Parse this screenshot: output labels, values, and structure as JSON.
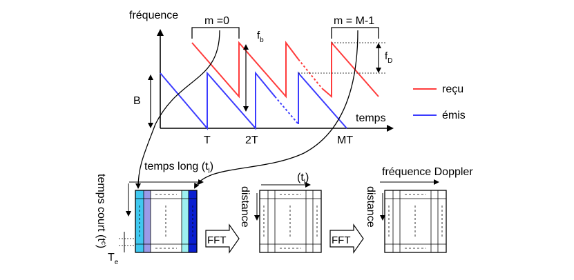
{
  "top": {
    "ylabel": "fréquence",
    "xlabel": "temps",
    "m0": "m =0",
    "mM": "m = M-1",
    "fb_main": "f",
    "fb_sub": "b",
    "fD_main": "f",
    "fD_sub": "D",
    "B": "B",
    "ticks": [
      "T",
      "2T",
      "MT"
    ],
    "legend": [
      {
        "label": "reçu",
        "color": "#ff3b3b"
      },
      {
        "label": "émis",
        "color": "#3b3bff"
      }
    ]
  },
  "bottom": {
    "temps_long": "temps long (t",
    "temps_long_sub": "l",
    "temps_long_close": ")",
    "temps_court": "temps court (t",
    "temps_court_sub": "c",
    "temps_court_close": ")",
    "Te_main": "T",
    "Te_sub": "e",
    "tl2": "(t",
    "tl2_sub": "l",
    "tl2_close": ")",
    "distance1": "distance",
    "distance2": "distance",
    "doppler": "fréquence Doppler",
    "fft1": "FFT",
    "fft2": "FFT"
  },
  "colors": {
    "recu": "#ff3b3b",
    "emis": "#3b3bff",
    "col_light": "#3fc8f0",
    "col_mid": "#9a9ae8",
    "col_pale": "#9ef0f0",
    "col_dark": "#0a1fd0"
  }
}
